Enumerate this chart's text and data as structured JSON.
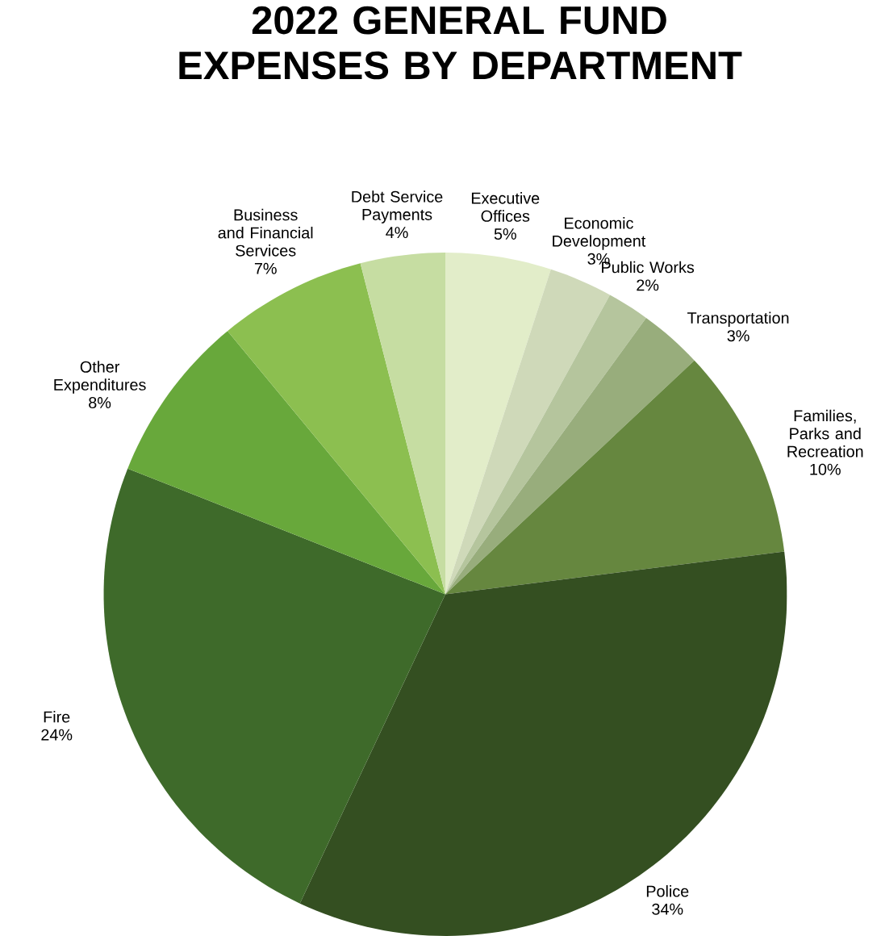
{
  "chart_data": {
    "type": "pie",
    "title": "2022 GENERAL FUND EXPENSES BY DEPARTMENT",
    "categories": [
      "Executive Offices",
      "Economic Development",
      "Public Works",
      "Transportation",
      "Families, Parks and Recreation",
      "Police",
      "Fire",
      "Other Expenditures",
      "Business and Financial Services",
      "Debt Service Payments"
    ],
    "values": [
      5,
      3,
      2,
      3,
      10,
      34,
      24,
      8,
      7,
      4
    ],
    "value_labels": [
      "5%",
      "3%",
      "2%",
      "3%",
      "10%",
      "34%",
      "24%",
      "8%",
      "7%",
      "4%"
    ],
    "colors": [
      "#e2edc9",
      "#cfd9b9",
      "#b5c59d",
      "#98ad7c",
      "#66873f",
      "#344f21",
      "#3e6a2a",
      "#68a83b",
      "#8cbf50",
      "#c6dda2"
    ]
  }
}
